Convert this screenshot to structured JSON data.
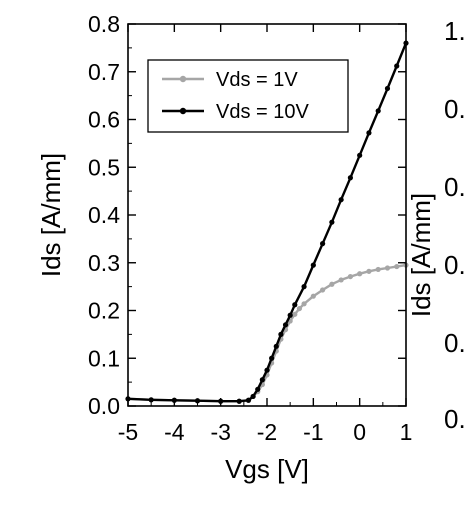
{
  "chart_data": {
    "type": "line",
    "title": "",
    "xlabel": "Vgs [V]",
    "ylabel": "Ids [A/mm]",
    "xlim": [
      -5,
      1
    ],
    "ylim": [
      0,
      0.8
    ],
    "xticks": [
      -5,
      -4,
      -3,
      -2,
      -1,
      0,
      1
    ],
    "xtick_labels": [
      "-5",
      "-4",
      "-3",
      "-2",
      "-1",
      "0",
      "1"
    ],
    "yticks": [
      0,
      0.1,
      0.2,
      0.3,
      0.4,
      0.5,
      0.6,
      0.7,
      0.8
    ],
    "ytick_labels": [
      "0.0",
      "0.1",
      "0.2",
      "0.3",
      "0.4",
      "0.5",
      "0.6",
      "0.7",
      "0.8"
    ],
    "legend_position": "top-left",
    "grid": false,
    "series": [
      {
        "name": "Vds = 1V",
        "color": "#a6a6a6",
        "marker": "circle",
        "x": [
          -5,
          -4.5,
          -4,
          -3.5,
          -3,
          -2.6,
          -2.4,
          -2.3,
          -2.2,
          -2.1,
          -2.0,
          -1.9,
          -1.8,
          -1.7,
          -1.6,
          -1.5,
          -1.4,
          -1.3,
          -1.2,
          -1.0,
          -0.8,
          -0.6,
          -0.4,
          -0.2,
          0,
          0.2,
          0.4,
          0.6,
          0.8,
          1.0
        ],
        "y": [
          0.015,
          0.013,
          0.012,
          0.011,
          0.01,
          0.01,
          0.012,
          0.02,
          0.03,
          0.045,
          0.065,
          0.09,
          0.115,
          0.14,
          0.16,
          0.178,
          0.192,
          0.204,
          0.214,
          0.23,
          0.243,
          0.255,
          0.264,
          0.271,
          0.277,
          0.282,
          0.286,
          0.289,
          0.292,
          0.295
        ]
      },
      {
        "name": "Vds = 10V",
        "color": "#000000",
        "marker": "circle",
        "x": [
          -5,
          -4.5,
          -4,
          -3.5,
          -3,
          -2.6,
          -2.4,
          -2.3,
          -2.2,
          -2.1,
          -2.0,
          -1.9,
          -1.8,
          -1.7,
          -1.6,
          -1.5,
          -1.4,
          -1.2,
          -1.0,
          -0.8,
          -0.6,
          -0.4,
          -0.2,
          0,
          0.2,
          0.4,
          0.6,
          0.8,
          1.0
        ],
        "y": [
          0.015,
          0.013,
          0.012,
          0.011,
          0.01,
          0.01,
          0.012,
          0.02,
          0.035,
          0.055,
          0.075,
          0.1,
          0.125,
          0.15,
          0.17,
          0.19,
          0.212,
          0.25,
          0.295,
          0.34,
          0.385,
          0.432,
          0.478,
          0.525,
          0.572,
          0.618,
          0.665,
          0.712,
          0.76
        ]
      }
    ]
  },
  "clipped_panel": {
    "ylabel": "Ids [A/mm]",
    "tick_labels": [
      "1.",
      "0.",
      "0.",
      "0.",
      "0.",
      "0."
    ]
  }
}
